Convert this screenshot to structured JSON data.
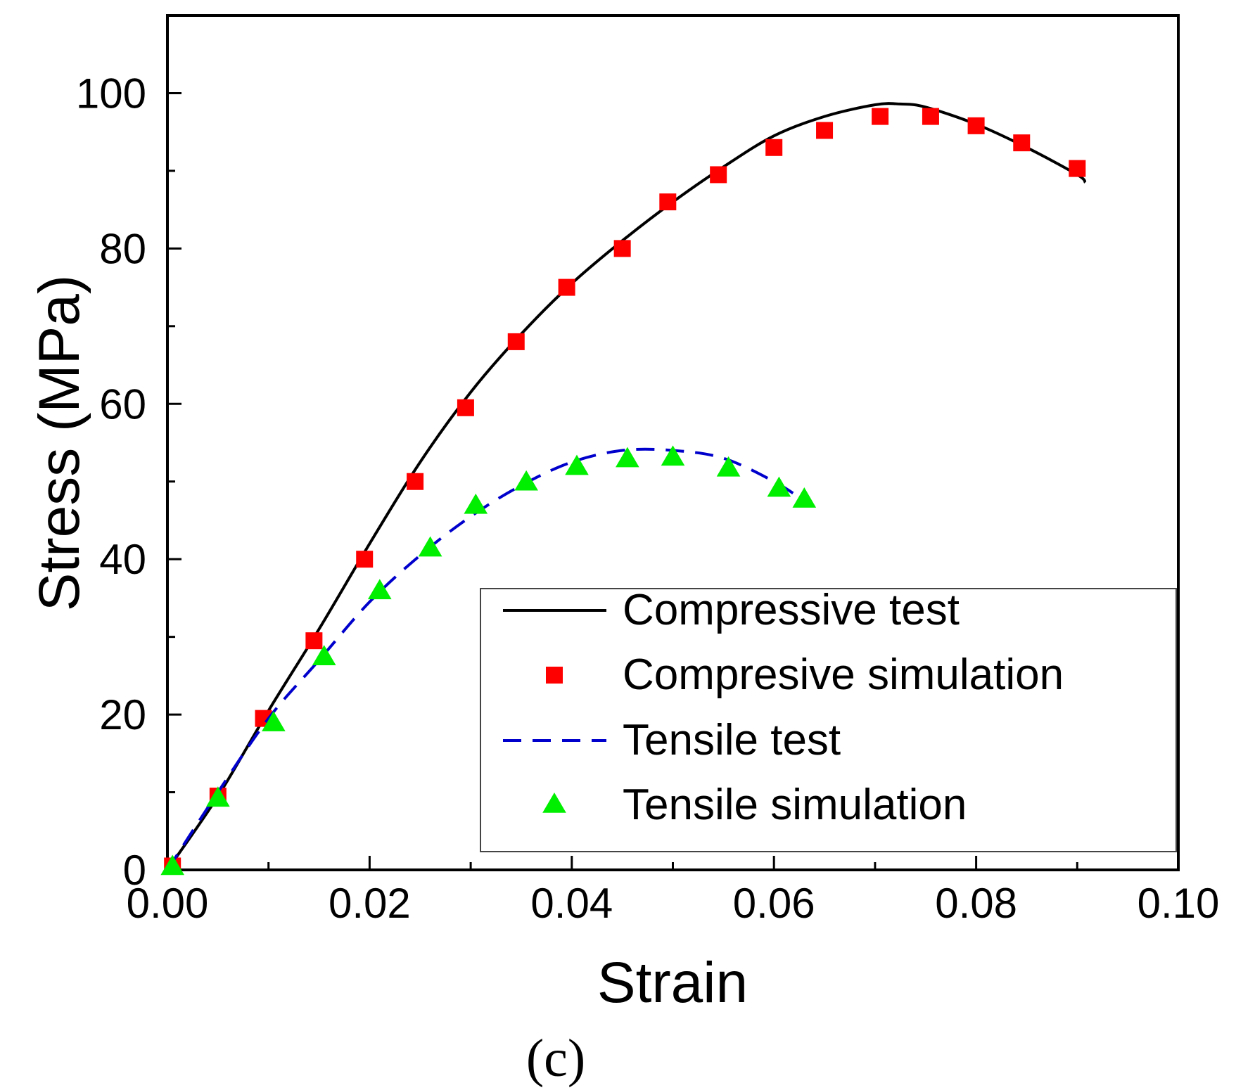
{
  "chart_data": {
    "type": "line",
    "title": "",
    "xlabel": "Strain",
    "ylabel": "Stress (MPa)",
    "panel_label": "(c)",
    "xlim": [
      0.0,
      0.1
    ],
    "ylim": [
      0,
      110
    ],
    "x_ticks": [
      0.0,
      0.02,
      0.04,
      0.06,
      0.08,
      0.1
    ],
    "x_tick_labels": [
      "0.00",
      "0.02",
      "0.04",
      "0.06",
      "0.08",
      "0.10"
    ],
    "y_ticks": [
      0,
      20,
      40,
      60,
      80,
      100
    ],
    "y_tick_labels": [
      "0",
      "20",
      "40",
      "60",
      "80",
      "100"
    ],
    "grid": false,
    "legend_position": "bottom-right",
    "series": [
      {
        "name": "Compressive test",
        "style": "solid-line",
        "color": "#000000",
        "x": [
          0.0,
          0.005,
          0.01,
          0.015,
          0.02,
          0.025,
          0.03,
          0.035,
          0.04,
          0.045,
          0.05,
          0.055,
          0.06,
          0.065,
          0.07,
          0.0725,
          0.075,
          0.08,
          0.085,
          0.09,
          0.0908
        ],
        "y": [
          0,
          9.5,
          20.5,
          31,
          42,
          52.5,
          61.5,
          69,
          75.5,
          81,
          86,
          90.5,
          94.5,
          97,
          98.5,
          98.6,
          98.2,
          96,
          93,
          89.5,
          88.5
        ]
      },
      {
        "name": "Compresive simulation",
        "style": "square-markers",
        "color": "#ff0000",
        "x": [
          0.0005,
          0.005,
          0.0095,
          0.0145,
          0.0195,
          0.0245,
          0.0295,
          0.0345,
          0.0395,
          0.045,
          0.0495,
          0.0545,
          0.06,
          0.065,
          0.0705,
          0.0755,
          0.08,
          0.0845,
          0.09
        ],
        "y": [
          0.5,
          9.5,
          19.5,
          29.5,
          40,
          50,
          59.5,
          68,
          75,
          80,
          86,
          89.5,
          93,
          95.2,
          97,
          97,
          95.8,
          93.6,
          90.3
        ]
      },
      {
        "name": "Tensile test",
        "style": "dashed-line",
        "color": "#0000cc",
        "x": [
          0.0,
          0.005,
          0.01,
          0.015,
          0.02,
          0.025,
          0.03,
          0.035,
          0.04,
          0.045,
          0.05,
          0.055,
          0.06,
          0.063
        ],
        "y": [
          0,
          10,
          19.5,
          27,
          34.5,
          40.5,
          45.5,
          49.5,
          52.5,
          54,
          54,
          53,
          50,
          47.5
        ]
      },
      {
        "name": "Tensile simulation",
        "style": "triangle-markers",
        "color": "#00ee00",
        "x": [
          0.0005,
          0.005,
          0.0105,
          0.0155,
          0.021,
          0.026,
          0.0305,
          0.0355,
          0.0405,
          0.0455,
          0.05,
          0.0555,
          0.0605,
          0.063
        ],
        "y": [
          0.5,
          9.3,
          19,
          27.5,
          36,
          41.5,
          47,
          50,
          52,
          53,
          53.2,
          51.8,
          49.2,
          47.8
        ]
      }
    ]
  }
}
